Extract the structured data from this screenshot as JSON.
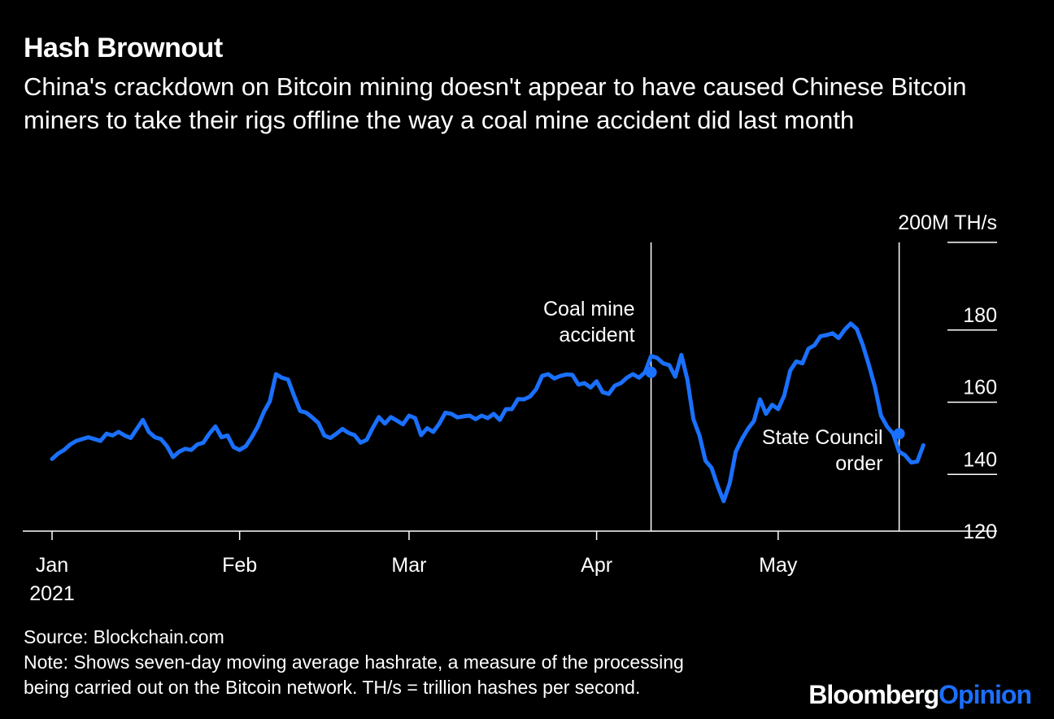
{
  "header": {
    "title": "Hash Brownout",
    "subtitle": "China's crackdown on Bitcoin mining doesn't appear to have caused Chinese Bitcoin miners to take their rigs offline the way a coal mine accident did last month"
  },
  "footer": {
    "source": "Source: Blockchain.com",
    "note_line1": "Note: Shows seven-day moving average hashrate, a measure of the processing",
    "note_line2": "being carried out on the Bitcoin network. TH/s = trillion hashes per second."
  },
  "branding": {
    "bloomberg": "Bloomberg",
    "opinion": "Opinion"
  },
  "colors": {
    "background": "#000000",
    "line": "#1a70ff",
    "text": "#ffffff"
  },
  "chart_data": {
    "type": "line",
    "x_domain": [
      "2021-01-01",
      "2021-05-31"
    ],
    "ylim": [
      120,
      200
    ],
    "y_ticks": [
      120,
      140,
      160,
      180
    ],
    "y_top_label": "200M TH/s",
    "x_ticks": [
      {
        "date": "2021-01-01",
        "label": "Jan",
        "sublabel": "2021"
      },
      {
        "date": "2021-02-01",
        "label": "Feb",
        "sublabel": ""
      },
      {
        "date": "2021-03-01",
        "label": "Mar",
        "sublabel": ""
      },
      {
        "date": "2021-04-01",
        "label": "Apr",
        "sublabel": ""
      },
      {
        "date": "2021-05-01",
        "label": "May",
        "sublabel": ""
      }
    ],
    "annotations": [
      {
        "date": "2021-04-10",
        "value": 164,
        "line1": "Coal mine",
        "line2": "accident",
        "side": "left"
      },
      {
        "date": "2021-05-21",
        "value": 147,
        "line1": "State Council",
        "line2": "order",
        "side": "left"
      }
    ],
    "series": [
      {
        "points": [
          [
            "2021-01-01",
            140
          ],
          [
            "2021-01-02",
            141.5
          ],
          [
            "2021-01-03",
            142.5
          ],
          [
            "2021-01-04",
            144
          ],
          [
            "2021-01-05",
            145
          ],
          [
            "2021-01-06",
            145.5
          ],
          [
            "2021-01-07",
            146
          ],
          [
            "2021-01-08",
            145.5
          ],
          [
            "2021-01-09",
            145
          ],
          [
            "2021-01-10",
            147
          ],
          [
            "2021-01-11",
            146.5
          ],
          [
            "2021-01-12",
            147.5
          ],
          [
            "2021-01-13",
            146.5
          ],
          [
            "2021-01-14",
            145.8
          ],
          [
            "2021-01-15",
            148.3
          ],
          [
            "2021-01-16",
            150.8
          ],
          [
            "2021-01-17",
            147.5
          ],
          [
            "2021-01-18",
            146
          ],
          [
            "2021-01-19",
            145.5
          ],
          [
            "2021-01-20",
            143.5
          ],
          [
            "2021-01-21",
            140.5
          ],
          [
            "2021-01-22",
            142
          ],
          [
            "2021-01-23",
            142.8
          ],
          [
            "2021-01-24",
            142.5
          ],
          [
            "2021-01-25",
            144
          ],
          [
            "2021-01-26",
            144.5
          ],
          [
            "2021-01-27",
            147
          ],
          [
            "2021-01-28",
            149
          ],
          [
            "2021-01-29",
            146
          ],
          [
            "2021-01-30",
            146.5
          ],
          [
            "2021-01-31",
            143.3
          ],
          [
            "2021-02-01",
            142.5
          ],
          [
            "2021-02-02",
            143.5
          ],
          [
            "2021-02-03",
            146
          ],
          [
            "2021-02-04",
            149
          ],
          [
            "2021-02-05",
            153
          ],
          [
            "2021-02-06",
            156
          ],
          [
            "2021-02-07",
            163.5
          ],
          [
            "2021-02-08",
            162.5
          ],
          [
            "2021-02-09",
            162
          ],
          [
            "2021-02-10",
            157.5
          ],
          [
            "2021-02-11",
            153.3
          ],
          [
            "2021-02-12",
            152.8
          ],
          [
            "2021-02-13",
            151.5
          ],
          [
            "2021-02-14",
            150
          ],
          [
            "2021-02-15",
            146.5
          ],
          [
            "2021-02-16",
            145.8
          ],
          [
            "2021-02-17",
            147
          ],
          [
            "2021-02-18",
            148.3
          ],
          [
            "2021-02-19",
            147.2
          ],
          [
            "2021-02-20",
            146.6
          ],
          [
            "2021-02-21",
            144.5
          ],
          [
            "2021-02-22",
            145.3
          ],
          [
            "2021-02-23",
            148.6
          ],
          [
            "2021-02-24",
            151.6
          ],
          [
            "2021-02-25",
            149.8
          ],
          [
            "2021-02-26",
            151.6
          ],
          [
            "2021-02-27",
            150.6
          ],
          [
            "2021-02-28",
            149.6
          ],
          [
            "2021-03-01",
            152
          ],
          [
            "2021-03-02",
            151.3
          ],
          [
            "2021-03-03",
            146.6
          ],
          [
            "2021-03-04",
            148.5
          ],
          [
            "2021-03-05",
            147.5
          ],
          [
            "2021-03-06",
            149.8
          ],
          [
            "2021-03-07",
            152.8
          ],
          [
            "2021-03-08",
            152.5
          ],
          [
            "2021-03-09",
            151.5
          ],
          [
            "2021-03-10",
            151.8
          ],
          [
            "2021-03-11",
            152
          ],
          [
            "2021-03-12",
            151
          ],
          [
            "2021-03-13",
            152
          ],
          [
            "2021-03-14",
            151.3
          ],
          [
            "2021-03-15",
            152.5
          ],
          [
            "2021-03-16",
            150.8
          ],
          [
            "2021-03-17",
            153.8
          ],
          [
            "2021-03-18",
            153.8
          ],
          [
            "2021-03-19",
            156.6
          ],
          [
            "2021-03-20",
            156.5
          ],
          [
            "2021-03-21",
            157.3
          ],
          [
            "2021-03-22",
            159.3
          ],
          [
            "2021-03-23",
            163
          ],
          [
            "2021-03-24",
            163.5
          ],
          [
            "2021-03-25",
            162.3
          ],
          [
            "2021-03-26",
            163
          ],
          [
            "2021-03-27",
            163.4
          ],
          [
            "2021-03-28",
            163.3
          ],
          [
            "2021-03-29",
            160.6
          ],
          [
            "2021-03-30",
            161
          ],
          [
            "2021-03-31",
            159.8
          ],
          [
            "2021-04-01",
            161.5
          ],
          [
            "2021-04-02",
            158.5
          ],
          [
            "2021-04-03",
            158
          ],
          [
            "2021-04-04",
            160.3
          ],
          [
            "2021-04-05",
            161
          ],
          [
            "2021-04-06",
            162.5
          ],
          [
            "2021-04-07",
            163.5
          ],
          [
            "2021-04-08",
            162.5
          ],
          [
            "2021-04-09",
            164
          ],
          [
            "2021-04-10",
            168.5
          ],
          [
            "2021-04-11",
            168
          ],
          [
            "2021-04-12",
            166.5
          ],
          [
            "2021-04-13",
            166
          ],
          [
            "2021-04-14",
            162.8
          ],
          [
            "2021-04-15",
            168.8
          ],
          [
            "2021-04-16",
            162
          ],
          [
            "2021-04-17",
            151
          ],
          [
            "2021-04-18",
            146.5
          ],
          [
            "2021-04-19",
            139.5
          ],
          [
            "2021-04-20",
            137.5
          ],
          [
            "2021-04-21",
            132.5
          ],
          [
            "2021-04-22",
            128.3
          ],
          [
            "2021-04-23",
            133.3
          ],
          [
            "2021-04-24",
            142
          ],
          [
            "2021-04-25",
            145.5
          ],
          [
            "2021-04-26",
            148.3
          ],
          [
            "2021-04-27",
            150.5
          ],
          [
            "2021-04-28",
            156.5
          ],
          [
            "2021-04-29",
            152.5
          ],
          [
            "2021-04-30",
            155
          ],
          [
            "2021-05-01",
            153.8
          ],
          [
            "2021-05-02",
            157.5
          ],
          [
            "2021-05-03",
            164.5
          ],
          [
            "2021-05-04",
            167
          ],
          [
            "2021-05-05",
            166.5
          ],
          [
            "2021-05-06",
            170.5
          ],
          [
            "2021-05-07",
            171.5
          ],
          [
            "2021-05-08",
            174
          ],
          [
            "2021-05-09",
            174.3
          ],
          [
            "2021-05-10",
            174.8
          ],
          [
            "2021-05-11",
            173.5
          ],
          [
            "2021-05-12",
            175.8
          ],
          [
            "2021-05-13",
            177.5
          ],
          [
            "2021-05-14",
            176
          ],
          [
            "2021-05-15",
            171.5
          ],
          [
            "2021-05-16",
            166
          ],
          [
            "2021-05-17",
            160
          ],
          [
            "2021-05-18",
            152
          ],
          [
            "2021-05-19",
            149
          ],
          [
            "2021-05-20",
            147
          ],
          [
            "2021-05-21",
            142
          ],
          [
            "2021-05-22",
            141
          ],
          [
            "2021-05-23",
            139
          ],
          [
            "2021-05-24",
            139.3
          ],
          [
            "2021-05-25",
            143.8
          ]
        ]
      }
    ]
  }
}
